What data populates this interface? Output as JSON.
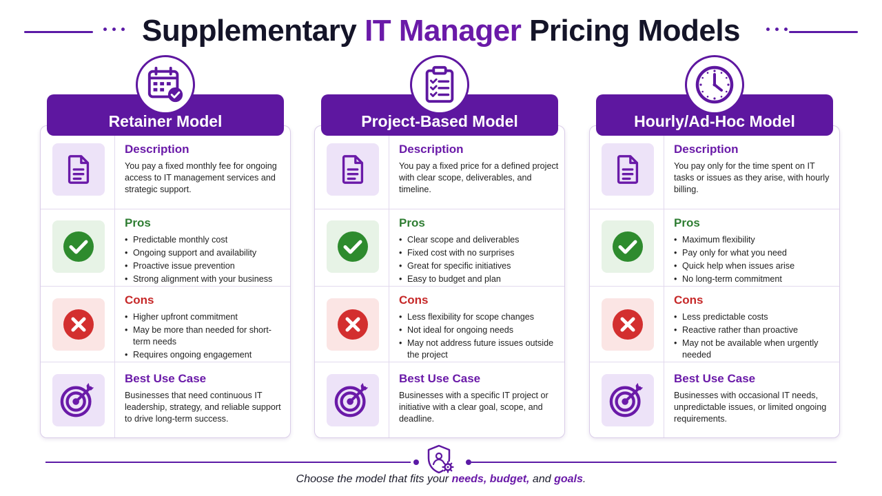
{
  "title": {
    "part1": "Supplementary ",
    "accent": "IT Manager",
    "part2": " Pricing Models"
  },
  "colors": {
    "brand_purple": "#5e17a0",
    "pros_green": "#2e7d32",
    "cons_red": "#c62828"
  },
  "section_labels": {
    "description": "Description",
    "pros": "Pros",
    "cons": "Cons",
    "best_use": "Best Use Case"
  },
  "models": [
    {
      "name": "Retainer Model",
      "icon": "calendar-check-icon",
      "description": "You pay a fixed monthly fee for ongoing access to IT management services and strategic support.",
      "pros": [
        "Predictable monthly cost",
        "Ongoing support and availability",
        "Proactive issue prevention",
        "Strong alignment with your business"
      ],
      "cons": [
        "Higher upfront commitment",
        "May be more than needed for short-term needs",
        "Requires ongoing engagement"
      ],
      "best_use": "Businesses that need continuous IT leadership, strategy, and reliable support to drive long-term success."
    },
    {
      "name": "Project-Based Model",
      "icon": "clipboard-checklist-icon",
      "description": "You pay a fixed price for a defined project with clear scope, deliverables, and timeline.",
      "pros": [
        "Clear scope and deliverables",
        "Fixed cost with no surprises",
        "Great for specific initiatives",
        "Easy to budget and plan"
      ],
      "cons": [
        "Less flexibility for scope changes",
        "Not ideal for ongoing needs",
        "May not address future issues outside the project"
      ],
      "best_use": "Businesses with a specific IT project or initiative with a clear goal, scope, and deadline."
    },
    {
      "name": "Hourly/Ad-Hoc Model",
      "icon": "clock-icon",
      "description": "You pay only for the time spent on IT tasks or issues as they arise, with hourly billing.",
      "pros": [
        "Maximum flexibility",
        "Pay only for what you need",
        "Quick help when issues arise",
        "No long-term commitment"
      ],
      "cons": [
        "Less predictable costs",
        "Reactive rather than proactive",
        "May not be available when urgently needed"
      ],
      "best_use": "Businesses with occasional IT needs, unpredictable issues, or limited ongoing requirements."
    }
  ],
  "footer": {
    "prefix": "Choose the model that fits your ",
    "w1": "needs,",
    "sep1": " ",
    "w2": "budget,",
    "sep2": " and ",
    "w3": "goals",
    "suffix": "."
  }
}
